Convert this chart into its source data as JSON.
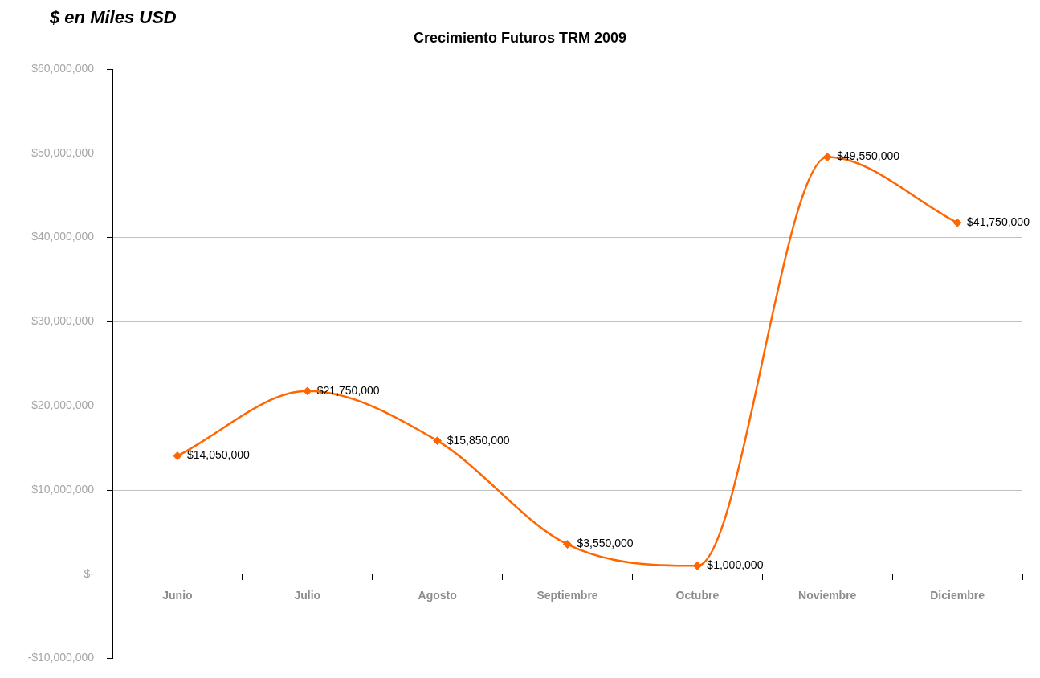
{
  "chart_data": {
    "type": "line",
    "title": "Crecimiento Futuros TRM 2009",
    "annotations": [
      "$ en Miles USD"
    ],
    "categories": [
      "Junio",
      "Julio",
      "Agosto",
      "Septiembre",
      "Octubre",
      "Noviembre",
      "Diciembre"
    ],
    "series": [
      {
        "color": "#ff6600",
        "values": [
          14050000,
          21750000,
          15850000,
          3550000,
          1000000,
          49550000,
          41750000
        ],
        "value_labels": [
          "$14,050,000",
          "$21,750,000",
          "$15,850,000",
          "$3,550,000",
          "$1,000,000",
          "$49,550,000",
          "$41,750,000"
        ]
      }
    ],
    "ylim": [
      -10000000,
      60000000
    ],
    "yticks": [
      {
        "value": -10000000,
        "label": "-$10,000,000"
      },
      {
        "value": 0,
        "label": "$-"
      },
      {
        "value": 10000000,
        "label": "$10,000,000"
      },
      {
        "value": 20000000,
        "label": "$20,000,000"
      },
      {
        "value": 30000000,
        "label": "$30,000,000"
      },
      {
        "value": 40000000,
        "label": "$40,000,000"
      },
      {
        "value": 50000000,
        "label": "$50,000,000"
      },
      {
        "value": 60000000,
        "label": "$60,000,000"
      }
    ],
    "grid": "y",
    "legend": false,
    "marker": "diamond",
    "line_style": "solid"
  }
}
